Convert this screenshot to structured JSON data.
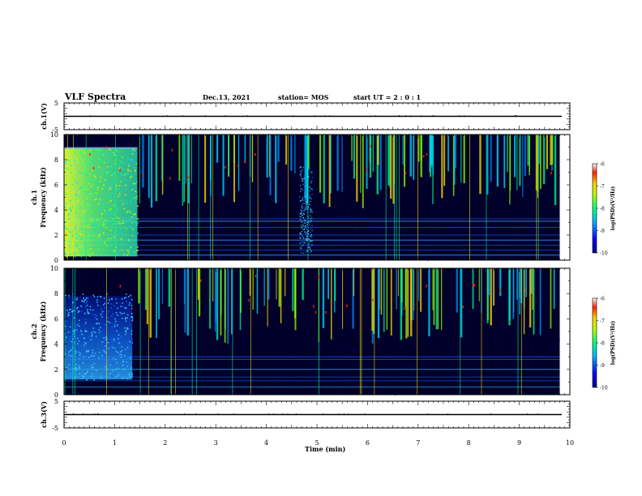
{
  "header": {
    "title": "VLF Spectra",
    "date": "Dec.13, 2021",
    "station": "station= MOS",
    "start": "start  UT =   2 : 0  : 1"
  },
  "chart_data": {
    "type": "heatmap",
    "xlabel": "Time  (min)",
    "xlim": [
      0,
      10
    ],
    "xticks": [
      "0",
      "1",
      "2",
      "3",
      "4",
      "5",
      "6",
      "7",
      "8",
      "9",
      "10"
    ],
    "channels": [
      {
        "id": "ch1v",
        "ylabel": "ch.1(V)",
        "ylim": [
          -5,
          5
        ],
        "yticks": [
          "5",
          "-5"
        ],
        "trace_level": 0
      },
      {
        "id": "ch1",
        "ylabel_line1": "ch.1",
        "ylabel_line2": "Frequency (kHz)",
        "ylim": [
          0,
          10
        ],
        "yticks": [
          "0",
          "2",
          "4",
          "6",
          "8",
          "10"
        ],
        "intense_broadband": {
          "t_start": 0,
          "t_end": 1.45
        },
        "secondary_burst": {
          "t_start": 4.65,
          "t_end": 4.9,
          "f_low": 0.5,
          "f_high": 7.5
        },
        "data_end_min": 9.8,
        "narrowband_lines_khz": [
          0.4,
          0.8,
          1.2,
          1.6,
          2.0,
          2.6,
          3.1,
          3.3
        ]
      },
      {
        "id": "ch2",
        "ylabel_line1": "ch.2",
        "ylabel_line2": "Frequency (kHz)",
        "ylim": [
          0,
          10
        ],
        "yticks": [
          "0",
          "2",
          "4",
          "6",
          "8",
          "10"
        ],
        "intense_broadband": {
          "t_start": 0,
          "t_end": 1.35
        },
        "data_end_min": 9.8,
        "narrowband_lines_khz": [
          0.6,
          1.1,
          1.4,
          2.0,
          2.8,
          3.0
        ]
      },
      {
        "id": "ch3v",
        "ylabel": "ch.3(V)",
        "ylim": [
          -5,
          5
        ],
        "yticks": [
          "5",
          "-5"
        ],
        "trace_level": 0
      }
    ],
    "colorbar": {
      "label": "log(PSD)(V²/Hz)",
      "range": [
        -10,
        -6
      ],
      "ticks": [
        "-6",
        "-7",
        "-8",
        "-9",
        "-10"
      ]
    }
  }
}
